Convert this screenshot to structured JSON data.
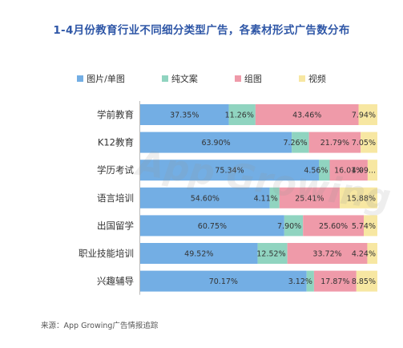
{
  "chart_data": {
    "type": "bar",
    "orientation": "horizontal",
    "stacked": true,
    "normalized": true,
    "title": "1-4月份教育行业不同细分类型广告，各素材形式广告数分布",
    "categories": [
      "学前教育",
      "K12教育",
      "学历考试",
      "语言培训",
      "出国留学",
      "职业技能培训",
      "兴趣辅导"
    ],
    "series": [
      {
        "name": "图片/单图",
        "color": "#73aee4",
        "values": [
          37.35,
          63.9,
          75.34,
          54.6,
          60.75,
          49.52,
          70.17
        ],
        "labels": [
          "37.35%",
          "63.90%",
          "75.34%",
          "54.60%",
          "60.75%",
          "49.52%",
          "70.17%"
        ]
      },
      {
        "name": "纯文案",
        "color": "#90d4c0",
        "values": [
          11.26,
          7.26,
          4.56,
          4.11,
          7.9,
          12.52,
          3.12
        ],
        "labels": [
          "11.26%",
          "7.26%",
          "4.56%",
          "4.11%",
          "7.90%",
          "12.52%",
          "3.12%"
        ]
      },
      {
        "name": "组图",
        "color": "#ef9aa9",
        "values": [
          43.46,
          21.79,
          16.01,
          25.41,
          25.6,
          33.72,
          17.87
        ],
        "labels": [
          "43.46%",
          "21.79%",
          "16.01%",
          "25.41%",
          "25.60%",
          "33.72%",
          "17.87%"
        ]
      },
      {
        "name": "视频",
        "color": "#f7e7a2",
        "values": [
          7.94,
          7.05,
          4.09,
          15.88,
          5.74,
          4.24,
          8.85
        ],
        "labels": [
          "7.94%",
          "7.05%",
          "4.09...",
          "15.88%",
          "5.74%",
          "4.24%",
          "8.85%"
        ]
      }
    ],
    "xlim": [
      0,
      100
    ],
    "legend_position": "top",
    "grid": false
  },
  "source": "来源：App Growing广告情报追踪",
  "watermark": "App Growing"
}
